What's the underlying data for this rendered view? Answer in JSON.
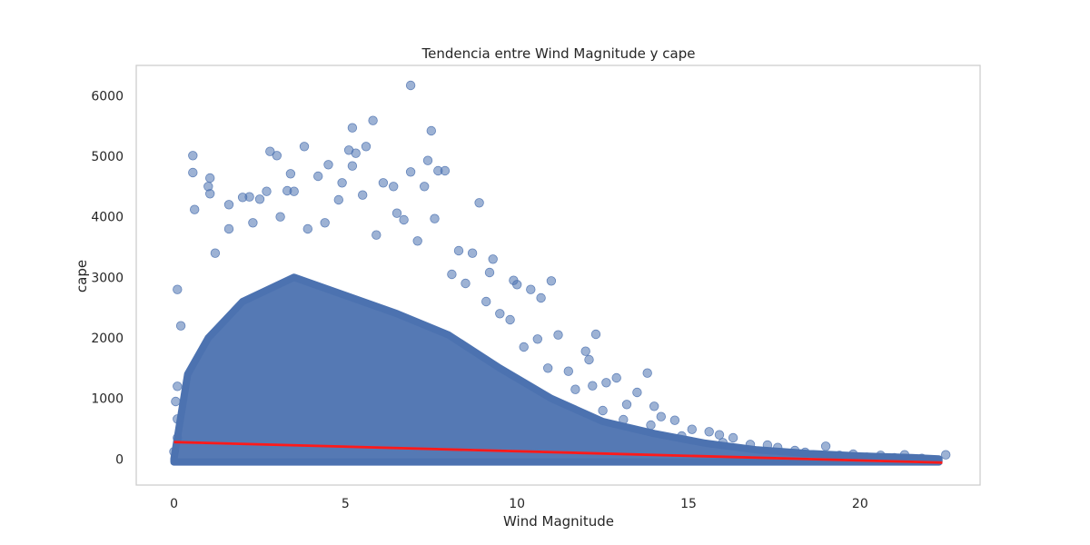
{
  "chart_data": {
    "type": "scatter",
    "title": "Tendencia entre Wind Magnitude y cape",
    "xlabel": "Wind Magnitude",
    "ylabel": "cape",
    "xlim": [
      -1.1,
      23.5
    ],
    "ylim": [
      -430,
      6500
    ],
    "xticks": [
      0,
      5,
      10,
      15,
      20
    ],
    "yticks": [
      0,
      1000,
      2000,
      3000,
      4000,
      5000,
      6000
    ],
    "xtick_labels": [
      "0",
      "5",
      "10",
      "15",
      "20"
    ],
    "ytick_labels": [
      "0",
      "1000",
      "2000",
      "3000",
      "4000",
      "5000",
      "6000"
    ],
    "grid": false,
    "colors": {
      "points": "#4c72b0",
      "trend": "#ff1a1a",
      "frame": "#cccccc"
    },
    "series": [
      {
        "kind": "scatter",
        "points": [
          [
            6.9,
            6170
          ],
          [
            5.8,
            5590
          ],
          [
            5.2,
            5470
          ],
          [
            7.5,
            5420
          ],
          [
            0.55,
            5010
          ],
          [
            3.0,
            5010
          ],
          [
            2.8,
            5080
          ],
          [
            3.8,
            5160
          ],
          [
            5.1,
            5100
          ],
          [
            5.3,
            5050
          ],
          [
            5.6,
            5160
          ],
          [
            7.4,
            4930
          ],
          [
            0.55,
            4730
          ],
          [
            1.05,
            4640
          ],
          [
            1.0,
            4500
          ],
          [
            1.05,
            4380
          ],
          [
            3.4,
            4710
          ],
          [
            4.5,
            4860
          ],
          [
            5.2,
            4840
          ],
          [
            6.9,
            4740
          ],
          [
            7.7,
            4760
          ],
          [
            7.9,
            4760
          ],
          [
            7.3,
            4500
          ],
          [
            6.4,
            4500
          ],
          [
            6.1,
            4560
          ],
          [
            4.2,
            4670
          ],
          [
            4.9,
            4560
          ],
          [
            8.9,
            4230
          ],
          [
            0.6,
            4120
          ],
          [
            1.6,
            4200
          ],
          [
            2.0,
            4320
          ],
          [
            2.2,
            4330
          ],
          [
            2.5,
            4290
          ],
          [
            2.7,
            4420
          ],
          [
            3.3,
            4430
          ],
          [
            3.5,
            4420
          ],
          [
            4.8,
            4280
          ],
          [
            5.5,
            4360
          ],
          [
            6.5,
            4060
          ],
          [
            7.6,
            3970
          ],
          [
            8.3,
            3440
          ],
          [
            8.7,
            3400
          ],
          [
            9.3,
            3300
          ],
          [
            9.2,
            3080
          ],
          [
            9.9,
            2950
          ],
          [
            10.0,
            2880
          ],
          [
            11.0,
            2940
          ],
          [
            10.4,
            2800
          ],
          [
            10.7,
            2660
          ],
          [
            9.8,
            2300
          ],
          [
            11.2,
            2050
          ],
          [
            12.3,
            2060
          ],
          [
            10.6,
            1980
          ],
          [
            12.0,
            1780
          ],
          [
            12.1,
            1640
          ],
          [
            13.8,
            1420
          ],
          [
            11.5,
            1450
          ],
          [
            12.9,
            1340
          ],
          [
            12.2,
            1210
          ],
          [
            12.6,
            1260
          ],
          [
            13.5,
            1100
          ],
          [
            13.2,
            900
          ],
          [
            14.0,
            870
          ],
          [
            14.2,
            700
          ],
          [
            14.6,
            640
          ],
          [
            13.9,
            560
          ],
          [
            15.1,
            490
          ],
          [
            15.6,
            450
          ],
          [
            15.9,
            400
          ],
          [
            16.3,
            350
          ],
          [
            16.8,
            240
          ],
          [
            17.3,
            230
          ],
          [
            17.6,
            190
          ],
          [
            18.1,
            140
          ],
          [
            19.0,
            210
          ],
          [
            19.8,
            80
          ],
          [
            20.6,
            60
          ],
          [
            21.3,
            70
          ],
          [
            22.5,
            70
          ],
          [
            0.1,
            2800
          ],
          [
            0.2,
            2200
          ],
          [
            0.1,
            1200
          ],
          [
            0.05,
            950
          ],
          [
            0.1,
            660
          ],
          [
            0.0,
            120
          ],
          [
            0.1,
            350
          ],
          [
            1.6,
            3800
          ],
          [
            1.2,
            3400
          ],
          [
            2.3,
            3900
          ],
          [
            3.1,
            4000
          ],
          [
            3.9,
            3800
          ],
          [
            4.4,
            3900
          ],
          [
            5.9,
            3700
          ],
          [
            6.7,
            3950
          ],
          [
            7.1,
            3600
          ],
          [
            8.1,
            3050
          ],
          [
            8.5,
            2900
          ],
          [
            9.1,
            2600
          ],
          [
            9.5,
            2400
          ],
          [
            10.2,
            1850
          ],
          [
            10.9,
            1500
          ],
          [
            11.7,
            1150
          ],
          [
            12.5,
            800
          ],
          [
            13.1,
            650
          ],
          [
            14.8,
            380
          ],
          [
            16.0,
            270
          ],
          [
            18.4,
            110
          ],
          [
            19.4,
            60
          ],
          [
            20.2,
            30
          ],
          [
            21.0,
            20
          ],
          [
            21.8,
            10
          ]
        ]
      },
      {
        "kind": "line",
        "points": [
          [
            0.0,
            280
          ],
          [
            22.4,
            -60
          ]
        ]
      }
    ]
  }
}
